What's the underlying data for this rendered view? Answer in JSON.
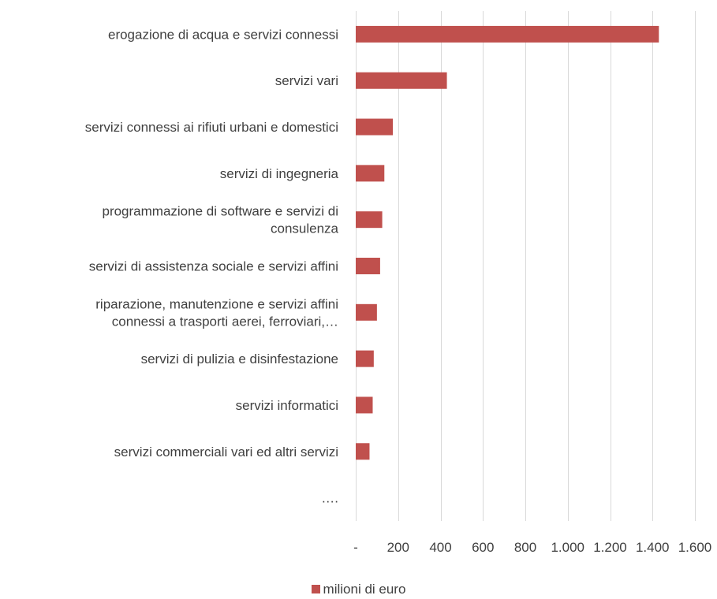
{
  "chart_data": {
    "type": "bar",
    "orientation": "horizontal",
    "title": "",
    "xlabel": "",
    "ylabel": "",
    "categories": [
      [
        "erogazione di acqua e servizi connessi"
      ],
      [
        "servizi vari"
      ],
      [
        "servizi connessi ai rifiuti urbani e domestici"
      ],
      [
        "servizi di ingegneria"
      ],
      [
        "programmazione di software e servizi di",
        "consulenza"
      ],
      [
        "servizi di assistenza sociale e servizi affini"
      ],
      [
        "riparazione, manutenzione e servizi affini",
        "connessi a trasporti aerei, ferroviari,…"
      ],
      [
        "servizi di pulizia e disinfestazione"
      ],
      [
        "servizi informatici"
      ],
      [
        "servizi commerciali vari ed altri servizi"
      ],
      [
        "…."
      ]
    ],
    "series": [
      {
        "name": "milioni di euro",
        "color": "#C0504D",
        "values": [
          1430,
          430,
          175,
          135,
          125,
          115,
          100,
          85,
          80,
          65,
          0
        ]
      }
    ],
    "xlim": [
      0,
      1600
    ],
    "xticks": [
      0,
      200,
      400,
      600,
      800,
      1000,
      1200,
      1400,
      1600
    ],
    "xtick_labels": [
      "-",
      "200",
      "400",
      "600",
      "800",
      "1.000",
      "1.200",
      "1.400",
      "1.600"
    ],
    "grid": "vertical",
    "legend_position": "bottom"
  }
}
